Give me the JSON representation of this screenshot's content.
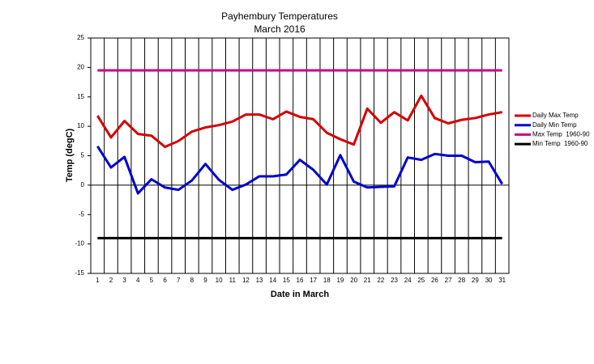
{
  "chart_data": {
    "type": "line",
    "title": "Payhembury Temperatures",
    "subtitle": "March 2016",
    "x_label": "Date in March",
    "y_label": "Temp (degC)",
    "categories": [
      "1",
      "2",
      "3",
      "4",
      "5",
      "6",
      "7",
      "8",
      "9",
      "10",
      "11",
      "12",
      "13",
      "14",
      "15",
      "16",
      "17",
      "18",
      "19",
      "20",
      "21",
      "22",
      "23",
      "24",
      "25",
      "26",
      "27",
      "28",
      "29",
      "30",
      "31"
    ],
    "ylim": [
      -15,
      25
    ],
    "yticks": [
      -15,
      -10,
      -5,
      0,
      5,
      10,
      15,
      20,
      25
    ],
    "legend": "right",
    "series": [
      {
        "name": "Daily Max Temp",
        "color": "#d40000",
        "values": [
          11.8,
          8.1,
          10.9,
          8.7,
          8.4,
          6.5,
          7.5,
          9.1,
          9.8,
          10.2,
          10.8,
          12.0,
          12.0,
          11.2,
          12.5,
          11.6,
          11.2,
          8.9,
          7.8,
          6.9,
          13.0,
          10.6,
          12.4,
          11.0,
          15.2,
          11.4,
          10.5,
          11.1,
          11.4,
          12.0,
          12.4
        ]
      },
      {
        "name": "Daily Min Temp",
        "color": "#0000cc",
        "values": [
          6.6,
          3.0,
          4.8,
          -1.4,
          1.0,
          -0.4,
          -0.8,
          0.8,
          3.6,
          0.9,
          -0.8,
          0.1,
          1.5,
          1.5,
          1.8,
          4.3,
          2.6,
          0.1,
          5.1,
          0.6,
          -0.4,
          -0.3,
          -0.2,
          4.7,
          4.3,
          5.3,
          5.0,
          5.0,
          3.9,
          4.0,
          0.2
        ]
      },
      {
        "name": "Max Temp  1960-90",
        "color": "#cc0080",
        "values": [
          19.5,
          19.5,
          19.5,
          19.5,
          19.5,
          19.5,
          19.5,
          19.5,
          19.5,
          19.5,
          19.5,
          19.5,
          19.5,
          19.5,
          19.5,
          19.5,
          19.5,
          19.5,
          19.5,
          19.5,
          19.5,
          19.5,
          19.5,
          19.5,
          19.5,
          19.5,
          19.5,
          19.5,
          19.5,
          19.5,
          19.5
        ]
      },
      {
        "name": "Min Temp  1960-90",
        "color": "#000000",
        "values": [
          -9,
          -9,
          -9,
          -9,
          -9,
          -9,
          -9,
          -9,
          -9,
          -9,
          -9,
          -9,
          -9,
          -9,
          -9,
          -9,
          -9,
          -9,
          -9,
          -9,
          -9,
          -9,
          -9,
          -9,
          -9,
          -9,
          -9,
          -9,
          -9,
          -9,
          -9
        ]
      }
    ]
  }
}
